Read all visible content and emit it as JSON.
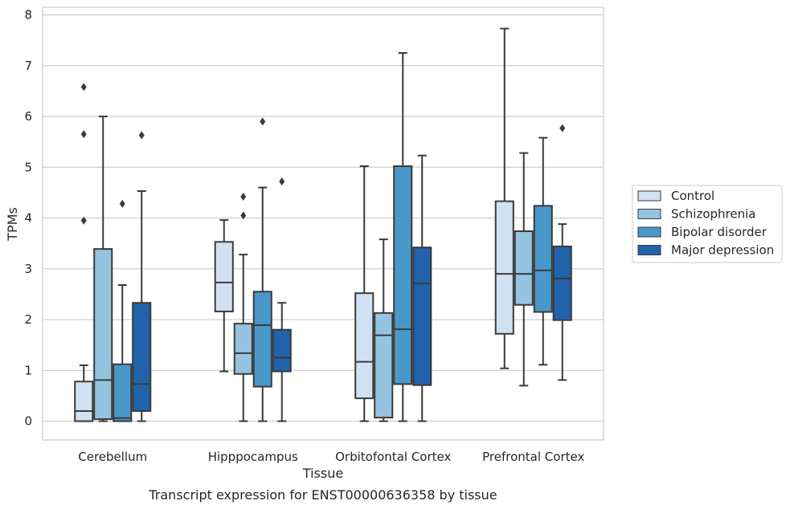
{
  "caption": "Transcript expression for ENST00000636358 by tissue",
  "chart_data": {
    "type": "box",
    "xlabel": "Tissue",
    "ylabel": "TPMs",
    "ylim": [
      -0.37,
      8.15
    ],
    "yticks": [
      0,
      1,
      2,
      3,
      4,
      5,
      6,
      7,
      8
    ],
    "grid": "horizontal",
    "legend_placement": "right",
    "categories": [
      "Cerebellum",
      "Hipppocampus",
      "Orbitofontal Cortex",
      "Prefrontal Cortex"
    ],
    "series": [
      {
        "name": "Control",
        "color": "#d0e1f2",
        "boxes": [
          {
            "whislo": 0.0,
            "q1": 0.0,
            "med": 0.2,
            "q3": 0.78,
            "whishi": 1.1,
            "fliers": [
              3.95,
              5.65,
              6.58
            ]
          },
          {
            "whislo": 0.98,
            "q1": 2.16,
            "med": 2.73,
            "q3": 3.53,
            "whishi": 3.96,
            "fliers": []
          },
          {
            "whislo": 0.0,
            "q1": 0.45,
            "med": 1.17,
            "q3": 2.52,
            "whishi": 5.02,
            "fliers": []
          },
          {
            "whislo": 1.04,
            "q1": 1.72,
            "med": 2.9,
            "q3": 4.33,
            "whishi": 7.73,
            "fliers": []
          }
        ]
      },
      {
        "name": "Schizophrenia",
        "color": "#94c4df",
        "boxes": [
          {
            "whislo": 0.0,
            "q1": 0.04,
            "med": 0.81,
            "q3": 3.39,
            "whishi": 6.0,
            "fliers": []
          },
          {
            "whislo": 0.0,
            "q1": 0.93,
            "med": 1.34,
            "q3": 1.92,
            "whishi": 3.28,
            "fliers": [
              4.05,
              4.42
            ]
          },
          {
            "whislo": 0.0,
            "q1": 0.07,
            "med": 1.69,
            "q3": 2.13,
            "whishi": 3.58,
            "fliers": []
          },
          {
            "whislo": 0.7,
            "q1": 2.29,
            "med": 2.9,
            "q3": 3.74,
            "whishi": 5.28,
            "fliers": []
          }
        ]
      },
      {
        "name": "Bipolar disorder",
        "color": "#4a98c9",
        "boxes": [
          {
            "whislo": 0.0,
            "q1": 0.0,
            "med": 0.06,
            "q3": 1.12,
            "whishi": 2.68,
            "fliers": [
              4.28
            ]
          },
          {
            "whislo": 0.0,
            "q1": 0.68,
            "med": 1.89,
            "q3": 2.55,
            "whishi": 4.6,
            "fliers": [
              5.9
            ]
          },
          {
            "whislo": 0.0,
            "q1": 0.73,
            "med": 1.81,
            "q3": 5.02,
            "whishi": 7.25,
            "fliers": []
          },
          {
            "whislo": 1.11,
            "q1": 2.15,
            "med": 2.97,
            "q3": 4.24,
            "whishi": 5.58,
            "fliers": []
          }
        ]
      },
      {
        "name": "Major depression",
        "color": "#2163aa",
        "boxes": [
          {
            "whislo": 0.0,
            "q1": 0.2,
            "med": 0.73,
            "q3": 2.33,
            "whishi": 4.53,
            "fliers": [
              5.63
            ]
          },
          {
            "whislo": 0.0,
            "q1": 0.98,
            "med": 1.25,
            "q3": 1.8,
            "whishi": 2.33,
            "fliers": [
              4.72
            ]
          },
          {
            "whislo": 0.0,
            "q1": 0.71,
            "med": 2.71,
            "q3": 3.42,
            "whishi": 5.23,
            "fliers": []
          },
          {
            "whislo": 0.81,
            "q1": 1.99,
            "med": 2.81,
            "q3": 3.44,
            "whishi": 3.88,
            "fliers": [
              5.77
            ]
          }
        ]
      }
    ]
  }
}
